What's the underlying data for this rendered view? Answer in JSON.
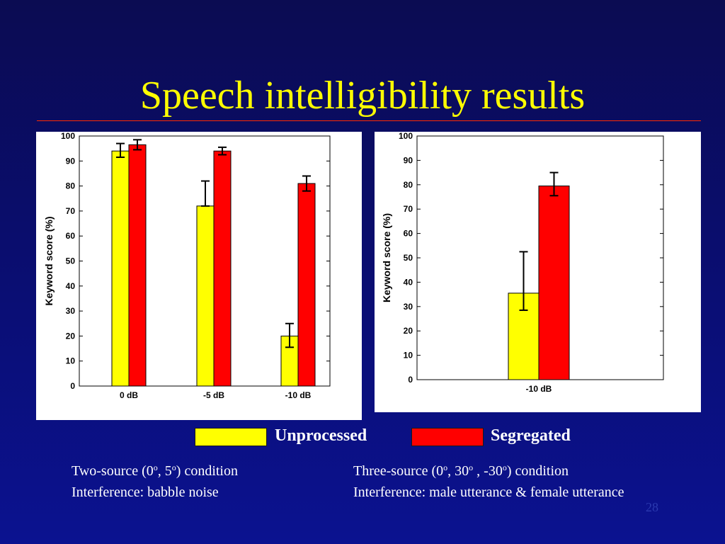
{
  "title": "Speech intelligibility results",
  "legend": {
    "items": [
      {
        "label": "Unprocessed",
        "color": "#ffff00"
      },
      {
        "label": "Segregated",
        "color": "#ff0000"
      }
    ]
  },
  "captions": {
    "left": {
      "line1_pre": "Two-source (0",
      "line1_deg1": "o",
      "line1_mid": ", 5",
      "line1_deg2": "o",
      "line1_post": ") condition",
      "line2": "Interference: babble noise"
    },
    "right": {
      "line1_pre": "Three-source (0",
      "line1_deg1": "o",
      "line1_mid1": ", 30",
      "line1_deg2": "o",
      "line1_mid2": " , -30",
      "line1_deg3": "o",
      "line1_post": ") condition",
      "line2": "Interference: male utterance & female utterance"
    }
  },
  "page_number": "28",
  "colors": {
    "unprocessed": "#ffff00",
    "segregated": "#ff0000",
    "title": "#ffff00",
    "rule": "#ff2a00"
  },
  "chart_data": [
    {
      "type": "bar",
      "categories": [
        "0 dB",
        "-5 dB",
        "-10 dB"
      ],
      "ylabel": "Keyword score (%)",
      "ylim": [
        0,
        100
      ],
      "yticks": [
        0,
        10,
        20,
        30,
        40,
        50,
        60,
        70,
        80,
        90,
        100
      ],
      "series": [
        {
          "name": "Unprocessed",
          "values": [
            94,
            72,
            20
          ],
          "err_low": [
            91.5,
            72,
            15.5
          ],
          "err_high": [
            97,
            82,
            25
          ]
        },
        {
          "name": "Segregated",
          "values": [
            96.5,
            94,
            81
          ],
          "err_low": [
            94.5,
            92.5,
            78
          ],
          "err_high": [
            98.5,
            95.5,
            84
          ]
        }
      ],
      "grid": false
    },
    {
      "type": "bar",
      "categories": [
        "-10 dB"
      ],
      "ylabel": "Keyword score (%)",
      "ylim": [
        0,
        100
      ],
      "yticks": [
        0,
        10,
        20,
        30,
        40,
        50,
        60,
        70,
        80,
        90,
        100
      ],
      "series": [
        {
          "name": "Unprocessed",
          "values": [
            35.5
          ],
          "err_low": [
            28.5
          ],
          "err_high": [
            52.5
          ]
        },
        {
          "name": "Segregated",
          "values": [
            79.5
          ],
          "err_low": [
            75.5
          ],
          "err_high": [
            85
          ]
        }
      ],
      "grid": false
    }
  ]
}
